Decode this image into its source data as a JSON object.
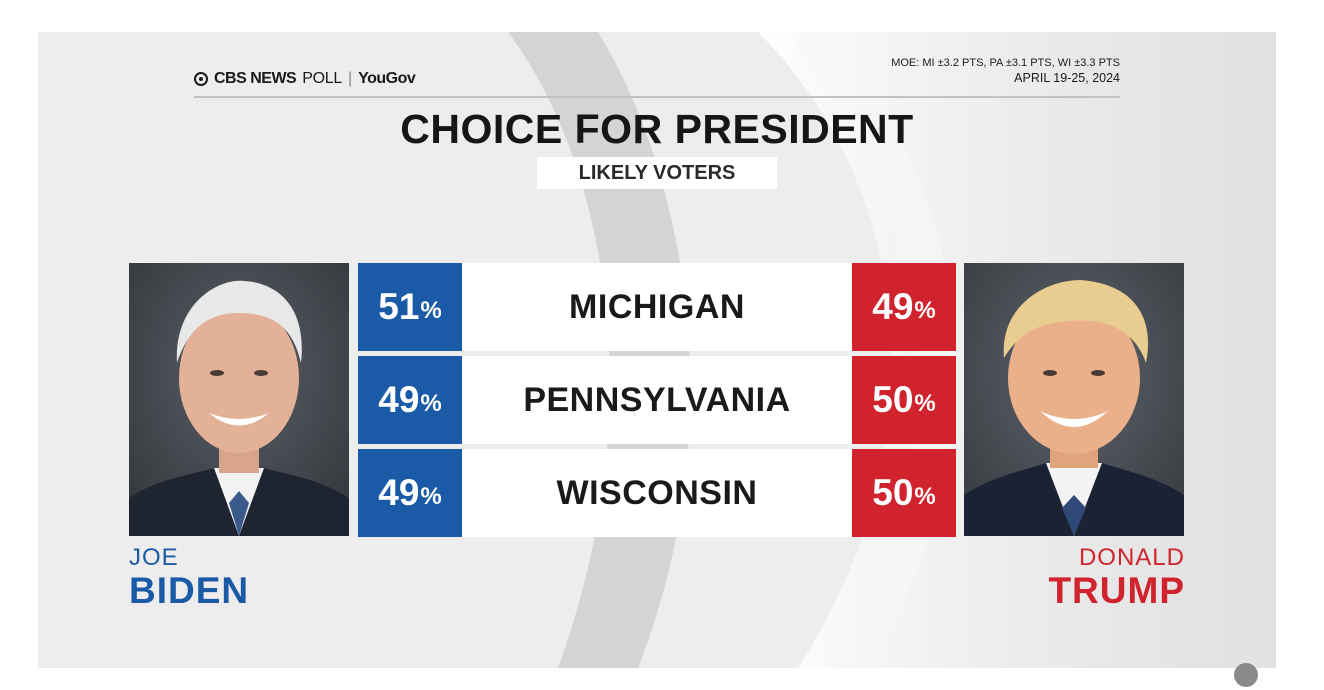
{
  "brand": {
    "network": "CBS NEWS",
    "poll_word": "POLL",
    "separator": "|",
    "partner": "YouGov"
  },
  "moe": {
    "text": "MOE: MI ±3.2 PTS, PA ±3.1 PTS, WI ±3.3 PTS",
    "dates": "APRIL 19-25, 2024"
  },
  "colors": {
    "dem_blue": "#1b5aa6",
    "rep_red": "#d1232d",
    "background": "#ededed"
  },
  "chart_data": {
    "type": "table",
    "title": "CHOICE FOR PRESIDENT",
    "subtitle": "LIKELY VOTERS",
    "percent_symbol": "%",
    "candidates": [
      {
        "first": "JOE",
        "last": "BIDEN",
        "party_color": "#1b5aa6",
        "photo": "joe-biden-portrait"
      },
      {
        "first": "DONALD",
        "last": "TRUMP",
        "party_color": "#d1232d",
        "photo": "donald-trump-portrait"
      }
    ],
    "rows": [
      {
        "state": "MICHIGAN",
        "biden": 51,
        "trump": 49
      },
      {
        "state": "PENNSYLVANIA",
        "biden": 49,
        "trump": 50
      },
      {
        "state": "WISCONSIN",
        "biden": 49,
        "trump": 50
      }
    ]
  }
}
